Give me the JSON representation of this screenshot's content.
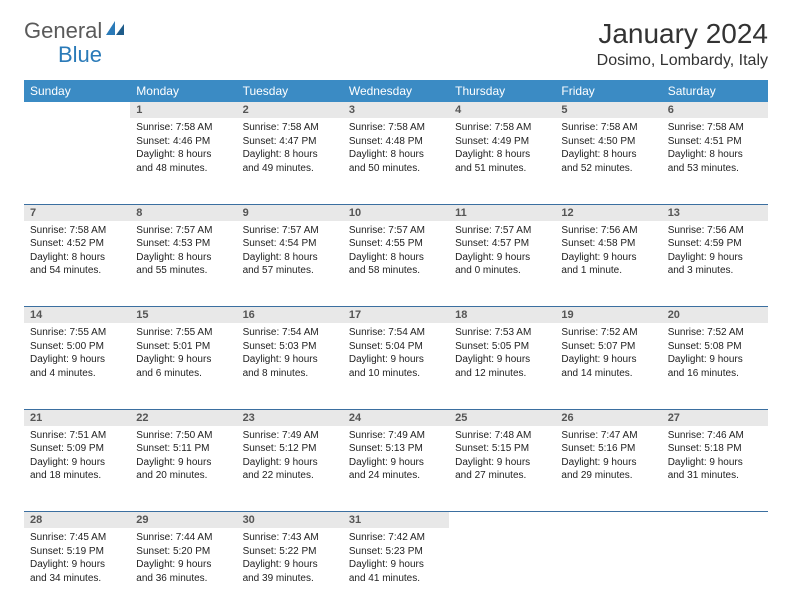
{
  "brand": {
    "part1": "General",
    "part2": "Blue",
    "color1": "#5a5a5a",
    "color2": "#2a7ab8"
  },
  "title": "January 2024",
  "location": "Dosimo, Lombardy, Italy",
  "colors": {
    "header_bg": "#3b8bc4",
    "header_text": "#ffffff",
    "daynum_bg": "#e8e8e8",
    "daynum_text": "#555555",
    "body_text": "#222222",
    "rule": "#3b6fa0",
    "page_bg": "#ffffff"
  },
  "typography": {
    "title_fontsize": 28,
    "location_fontsize": 16,
    "weekday_fontsize": 12,
    "daynum_fontsize": 11,
    "cell_fontsize": 10
  },
  "weekdays": [
    "Sunday",
    "Monday",
    "Tuesday",
    "Wednesday",
    "Thursday",
    "Friday",
    "Saturday"
  ],
  "weeks": [
    [
      null,
      {
        "n": "1",
        "sunrise": "7:58 AM",
        "sunset": "4:46 PM",
        "daylight": "8 hours and 48 minutes."
      },
      {
        "n": "2",
        "sunrise": "7:58 AM",
        "sunset": "4:47 PM",
        "daylight": "8 hours and 49 minutes."
      },
      {
        "n": "3",
        "sunrise": "7:58 AM",
        "sunset": "4:48 PM",
        "daylight": "8 hours and 50 minutes."
      },
      {
        "n": "4",
        "sunrise": "7:58 AM",
        "sunset": "4:49 PM",
        "daylight": "8 hours and 51 minutes."
      },
      {
        "n": "5",
        "sunrise": "7:58 AM",
        "sunset": "4:50 PM",
        "daylight": "8 hours and 52 minutes."
      },
      {
        "n": "6",
        "sunrise": "7:58 AM",
        "sunset": "4:51 PM",
        "daylight": "8 hours and 53 minutes."
      }
    ],
    [
      {
        "n": "7",
        "sunrise": "7:58 AM",
        "sunset": "4:52 PM",
        "daylight": "8 hours and 54 minutes."
      },
      {
        "n": "8",
        "sunrise": "7:57 AM",
        "sunset": "4:53 PM",
        "daylight": "8 hours and 55 minutes."
      },
      {
        "n": "9",
        "sunrise": "7:57 AM",
        "sunset": "4:54 PM",
        "daylight": "8 hours and 57 minutes."
      },
      {
        "n": "10",
        "sunrise": "7:57 AM",
        "sunset": "4:55 PM",
        "daylight": "8 hours and 58 minutes."
      },
      {
        "n": "11",
        "sunrise": "7:57 AM",
        "sunset": "4:57 PM",
        "daylight": "9 hours and 0 minutes."
      },
      {
        "n": "12",
        "sunrise": "7:56 AM",
        "sunset": "4:58 PM",
        "daylight": "9 hours and 1 minute."
      },
      {
        "n": "13",
        "sunrise": "7:56 AM",
        "sunset": "4:59 PM",
        "daylight": "9 hours and 3 minutes."
      }
    ],
    [
      {
        "n": "14",
        "sunrise": "7:55 AM",
        "sunset": "5:00 PM",
        "daylight": "9 hours and 4 minutes."
      },
      {
        "n": "15",
        "sunrise": "7:55 AM",
        "sunset": "5:01 PM",
        "daylight": "9 hours and 6 minutes."
      },
      {
        "n": "16",
        "sunrise": "7:54 AM",
        "sunset": "5:03 PM",
        "daylight": "9 hours and 8 minutes."
      },
      {
        "n": "17",
        "sunrise": "7:54 AM",
        "sunset": "5:04 PM",
        "daylight": "9 hours and 10 minutes."
      },
      {
        "n": "18",
        "sunrise": "7:53 AM",
        "sunset": "5:05 PM",
        "daylight": "9 hours and 12 minutes."
      },
      {
        "n": "19",
        "sunrise": "7:52 AM",
        "sunset": "5:07 PM",
        "daylight": "9 hours and 14 minutes."
      },
      {
        "n": "20",
        "sunrise": "7:52 AM",
        "sunset": "5:08 PM",
        "daylight": "9 hours and 16 minutes."
      }
    ],
    [
      {
        "n": "21",
        "sunrise": "7:51 AM",
        "sunset": "5:09 PM",
        "daylight": "9 hours and 18 minutes."
      },
      {
        "n": "22",
        "sunrise": "7:50 AM",
        "sunset": "5:11 PM",
        "daylight": "9 hours and 20 minutes."
      },
      {
        "n": "23",
        "sunrise": "7:49 AM",
        "sunset": "5:12 PM",
        "daylight": "9 hours and 22 minutes."
      },
      {
        "n": "24",
        "sunrise": "7:49 AM",
        "sunset": "5:13 PM",
        "daylight": "9 hours and 24 minutes."
      },
      {
        "n": "25",
        "sunrise": "7:48 AM",
        "sunset": "5:15 PM",
        "daylight": "9 hours and 27 minutes."
      },
      {
        "n": "26",
        "sunrise": "7:47 AM",
        "sunset": "5:16 PM",
        "daylight": "9 hours and 29 minutes."
      },
      {
        "n": "27",
        "sunrise": "7:46 AM",
        "sunset": "5:18 PM",
        "daylight": "9 hours and 31 minutes."
      }
    ],
    [
      {
        "n": "28",
        "sunrise": "7:45 AM",
        "sunset": "5:19 PM",
        "daylight": "9 hours and 34 minutes."
      },
      {
        "n": "29",
        "sunrise": "7:44 AM",
        "sunset": "5:20 PM",
        "daylight": "9 hours and 36 minutes."
      },
      {
        "n": "30",
        "sunrise": "7:43 AM",
        "sunset": "5:22 PM",
        "daylight": "9 hours and 39 minutes."
      },
      {
        "n": "31",
        "sunrise": "7:42 AM",
        "sunset": "5:23 PM",
        "daylight": "9 hours and 41 minutes."
      },
      null,
      null,
      null
    ]
  ],
  "labels": {
    "sunrise": "Sunrise:",
    "sunset": "Sunset:",
    "daylight": "Daylight:"
  }
}
